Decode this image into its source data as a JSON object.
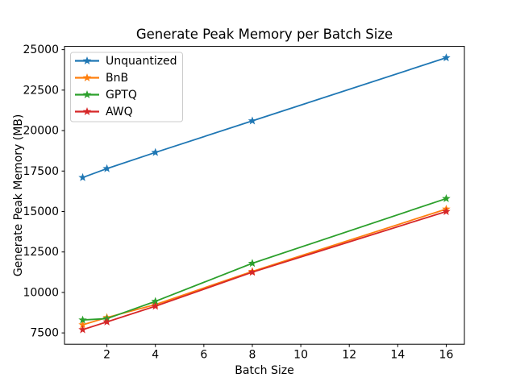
{
  "figure": {
    "background": "#ffffff",
    "axes_edge_color": "#000000",
    "legend_edge_color": "#cccccc",
    "legend_background": "#ffffff"
  },
  "chart_data": {
    "type": "line",
    "title": "Generate Peak Memory per Batch Size",
    "xlabel": "Batch Size",
    "ylabel": "Generate Peak Memory (MB)",
    "x": [
      1,
      2,
      4,
      8,
      16
    ],
    "xlim": [
      0.25,
      16.75
    ],
    "ylim": [
      6800,
      25200
    ],
    "xticks": [
      2,
      4,
      6,
      8,
      10,
      12,
      14,
      16
    ],
    "yticks": [
      7500,
      10000,
      12500,
      15000,
      17500,
      20000,
      22500,
      25000
    ],
    "grid": false,
    "marker": "star",
    "legend_position": "upper-left",
    "series": [
      {
        "name": "Unquantized",
        "color": "#1f77b4",
        "values": [
          17100,
          17650,
          18650,
          20600,
          24500
        ]
      },
      {
        "name": "BnB",
        "color": "#ff7f0e",
        "values": [
          8000,
          8450,
          9250,
          11300,
          15150
        ]
      },
      {
        "name": "GPTQ",
        "color": "#2ca02c",
        "values": [
          8300,
          8380,
          9450,
          11800,
          15800
        ]
      },
      {
        "name": "AWQ",
        "color": "#d62728",
        "values": [
          7700,
          8180,
          9150,
          11250,
          15000
        ]
      }
    ]
  }
}
